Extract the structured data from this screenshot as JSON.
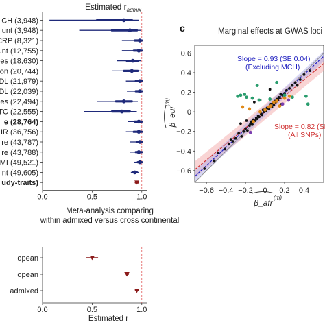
{
  "chart_data": [
    {
      "type": "forest",
      "title": "",
      "xlabel": "Estimated r",
      "xlabel_sub": "admix",
      "xlim": [
        0.0,
        1.05
      ],
      "xticks": [
        0.0,
        0.5,
        1.0
      ],
      "xtick_labels": [
        "0.0",
        "0.5",
        "1.0"
      ],
      "reference_line": 1.0,
      "point_color": "#1f2a7a",
      "ref_color": "#e05a5a",
      "rows": [
        {
          "label": "CH (3,948)",
          "bold": false,
          "estimate": 0.82,
          "ci_lo": 0.07,
          "ci_hi": 0.97,
          "ci50_lo": 0.55,
          "ci50_hi": 0.9,
          "color": "#1f2a7a"
        },
        {
          "label": "unt (3,948)",
          "bold": false,
          "estimate": 0.88,
          "ci_lo": 0.37,
          "ci_hi": 0.99,
          "ci50_lo": 0.7,
          "ci50_hi": 0.95,
          "color": "#1f2a7a"
        },
        {
          "label": "CRP (8,321)",
          "bold": false,
          "estimate": 0.98,
          "ci_lo": 0.8,
          "ci_hi": 1.0,
          "ci50_lo": 0.93,
          "ci50_hi": 1.0,
          "color": "#1f2a7a"
        },
        {
          "label": "unt (12,755)",
          "bold": false,
          "estimate": 0.97,
          "ci_lo": 0.8,
          "ci_hi": 1.0,
          "ci50_lo": 0.92,
          "ci50_hi": 1.0,
          "color": "#1f2a7a"
        },
        {
          "label": "es (18,630)",
          "bold": false,
          "estimate": 0.91,
          "ci_lo": 0.75,
          "ci_hi": 0.99,
          "ci50_lo": 0.85,
          "ci50_hi": 0.96,
          "color": "#1f2a7a"
        },
        {
          "label": "on (20,744)",
          "bold": false,
          "estimate": 0.9,
          "ci_lo": 0.7,
          "ci_hi": 1.0,
          "ci50_lo": 0.82,
          "ci50_hi": 0.96,
          "color": "#1f2a7a"
        },
        {
          "label": "DL (21,979)",
          "bold": false,
          "estimate": 0.98,
          "ci_lo": 0.84,
          "ci_hi": 1.0,
          "ci50_lo": 0.94,
          "ci50_hi": 1.0,
          "color": "#1f2a7a"
        },
        {
          "label": "DL (22,039)",
          "bold": false,
          "estimate": 0.98,
          "ci_lo": 0.85,
          "ci_hi": 1.0,
          "ci50_lo": 0.94,
          "ci50_hi": 1.0,
          "color": "#1f2a7a"
        },
        {
          "label": "es (22,494)",
          "bold": false,
          "estimate": 0.82,
          "ci_lo": 0.55,
          "ci_hi": 0.96,
          "ci50_lo": 0.74,
          "ci50_hi": 0.9,
          "color": "#1f2a7a"
        },
        {
          "label": "TC (22,555)",
          "bold": false,
          "estimate": 0.8,
          "ci_lo": 0.42,
          "ci_hi": 0.95,
          "ci50_lo": 0.7,
          "ci50_hi": 0.88,
          "color": "#1f2a7a"
        },
        {
          "label": "e (28,764)",
          "bold": true,
          "estimate": 0.97,
          "ci_lo": 0.86,
          "ci_hi": 1.0,
          "ci50_lo": 0.93,
          "ci50_hi": 1.0,
          "color": "#1f2a7a"
        },
        {
          "label": "IR (36,756)",
          "bold": false,
          "estimate": 0.97,
          "ci_lo": 0.84,
          "ci_hi": 1.0,
          "ci50_lo": 0.92,
          "ci50_hi": 1.0,
          "color": "#1f2a7a"
        },
        {
          "label": "re (43,787)",
          "bold": false,
          "estimate": 0.98,
          "ci_lo": 0.88,
          "ci_hi": 1.0,
          "ci50_lo": 0.95,
          "ci50_hi": 1.0,
          "color": "#1f2a7a"
        },
        {
          "label": "re (43,788)",
          "bold": false,
          "estimate": 0.97,
          "ci_lo": 0.88,
          "ci_hi": 1.0,
          "ci50_lo": 0.94,
          "ci50_hi": 1.0,
          "color": "#1f2a7a"
        },
        {
          "label": "MI (49,521)",
          "bold": false,
          "estimate": 0.98,
          "ci_lo": 0.92,
          "ci_hi": 1.0,
          "ci50_lo": 0.96,
          "ci50_hi": 1.0,
          "color": "#1f2a7a"
        },
        {
          "label": "nt (49,605)",
          "bold": false,
          "estimate": 0.93,
          "ci_lo": 0.89,
          "ci_hi": 0.97,
          "ci50_lo": 0.91,
          "ci50_hi": 0.95,
          "color": "#1f2a7a"
        },
        {
          "label": "udy-traits)",
          "bold": true,
          "estimate": 0.95,
          "ci_lo": 0.93,
          "ci_hi": 0.97,
          "ci50_lo": 0.94,
          "ci50_hi": 0.96,
          "color": "#8b1a1a",
          "marker": "triangle"
        }
      ]
    },
    {
      "type": "forest",
      "title": "Meta-analysis comparing\nwithin admixed versus cross continental",
      "xlabel": "Estimated r",
      "xlim": [
        0.0,
        1.05
      ],
      "xticks": [
        0.0,
        0.5,
        1.0
      ],
      "xtick_labels": [
        "0.0",
        "0.5",
        "1.0"
      ],
      "reference_line": 1.0,
      "rows": [
        {
          "label": "opean",
          "estimate": 0.5,
          "ci_lo": 0.44,
          "ci_hi": 0.56,
          "color": "#8b1a1a",
          "marker": "triangle"
        },
        {
          "label": "opean",
          "estimate": 0.85,
          "ci_lo": 0.84,
          "ci_hi": 0.87,
          "color": "#8b1a1a",
          "marker": "triangle"
        },
        {
          "label": "admixed",
          "estimate": 0.95,
          "ci_lo": 0.93,
          "ci_hi": 0.97,
          "color": "#8b1a1a",
          "marker": "triangle"
        }
      ]
    },
    {
      "type": "scatter",
      "panel_label": "c",
      "title": "Marginal effects at GWAS loci",
      "xlabel": "β_afr",
      "xlabel_sup": "(m)",
      "ylabel": "β_eur",
      "ylabel_sup": "(m)",
      "xlim": [
        -0.72,
        0.6
      ],
      "ylim": [
        -0.72,
        0.68
      ],
      "xticks": [
        -0.6,
        -0.4,
        -0.2,
        0,
        0.2,
        0.4
      ],
      "xtick_labels": [
        "−0.6",
        "−0.4",
        "−0.2",
        "0",
        "0.2",
        "0.4"
      ],
      "yticks": [
        -0.6,
        -0.4,
        -0.2,
        0,
        0.2,
        0.4,
        0.6
      ],
      "ytick_labels": [
        "−0.6",
        "−0.4",
        "−0.2",
        "0",
        "0.2",
        "0.4",
        "0.6"
      ],
      "lines": [
        {
          "name": "Slope = 0.93 (SE 0.04)",
          "sub": "(Excluding MCH)",
          "slope": 0.93,
          "intercept": 0.01,
          "color": "#2020c0",
          "dash": true
        },
        {
          "name": "Slope = 0.82 (SE 0",
          "sub": "(All SNPs)",
          "slope": 0.82,
          "intercept": 0.0,
          "color": "#d03030",
          "dash": true
        }
      ],
      "reference": {
        "slope": 1.0,
        "intercept": 0.0,
        "color": "#888888"
      },
      "series": [
        {
          "group": "other",
          "color": "#111111",
          "x": [
            -0.62,
            -0.52,
            -0.48,
            -0.41,
            -0.37,
            -0.33,
            -0.3,
            -0.27,
            -0.24,
            -0.22,
            -0.2,
            -0.18,
            -0.16,
            -0.15,
            -0.14,
            -0.13,
            -0.12,
            -0.1,
            -0.09,
            -0.08,
            -0.07,
            -0.06,
            -0.05,
            -0.04,
            -0.03,
            -0.02,
            -0.01,
            0.0,
            0.01,
            0.02,
            0.03,
            0.04,
            0.05,
            0.06,
            0.07,
            0.08,
            0.09,
            0.1,
            0.11,
            0.12,
            0.13,
            0.14,
            0.15,
            0.16,
            0.18,
            0.2,
            0.22,
            0.25,
            0.28,
            0.31,
            0.36,
            0.4,
            0.46,
            -0.25,
            -0.19,
            -0.11,
            0.05,
            0.17,
            -0.35,
            0.33
          ],
          "y": [
            -0.58,
            -0.5,
            -0.42,
            -0.38,
            -0.33,
            -0.3,
            -0.27,
            -0.22,
            -0.25,
            -0.2,
            -0.17,
            -0.19,
            -0.14,
            -0.12,
            -0.1,
            -0.13,
            -0.08,
            -0.09,
            -0.06,
            -0.07,
            -0.04,
            -0.05,
            0.12,
            -0.02,
            -0.03,
            0.02,
            0.0,
            0.03,
            0.01,
            0.04,
            0.05,
            0.03,
            0.06,
            0.08,
            0.05,
            0.09,
            0.07,
            0.11,
            0.1,
            0.13,
            0.12,
            0.15,
            0.14,
            0.18,
            0.17,
            0.19,
            0.22,
            0.24,
            0.27,
            0.3,
            0.33,
            0.38,
            0.42,
            -0.12,
            -0.09,
            0.1,
            0.23,
            0.08,
            -0.28,
            0.27
          ]
        },
        {
          "group": "green",
          "color": "#2a9d6e",
          "x": [
            -0.28,
            -0.25,
            -0.21,
            -0.19,
            -0.13,
            -0.08,
            -0.06,
            0.05,
            0.12,
            0.2,
            0.28,
            0.42,
            0.44
          ],
          "y": [
            0.16,
            0.17,
            0.18,
            0.15,
            0.14,
            0.27,
            0.12,
            0.13,
            0.3,
            0.17,
            0.15,
            0.16,
            0.08
          ]
        },
        {
          "group": "orange",
          "color": "#e08a1a",
          "x": [
            -0.23,
            -0.16,
            -0.12,
            -0.05,
            0.0,
            0.04,
            0.06,
            0.09,
            0.12,
            0.15,
            0.2,
            0.25
          ],
          "y": [
            0.05,
            0.03,
            -0.1,
            0.0,
            0.02,
            0.05,
            0.06,
            0.1,
            0.11,
            0.06,
            0.14,
            0.16
          ]
        },
        {
          "group": "purple",
          "color": "#7a3fb0",
          "x": [
            -0.15,
            0.18,
            0.24
          ],
          "y": [
            -0.21,
            0.08,
            0.12
          ]
        }
      ]
    }
  ]
}
